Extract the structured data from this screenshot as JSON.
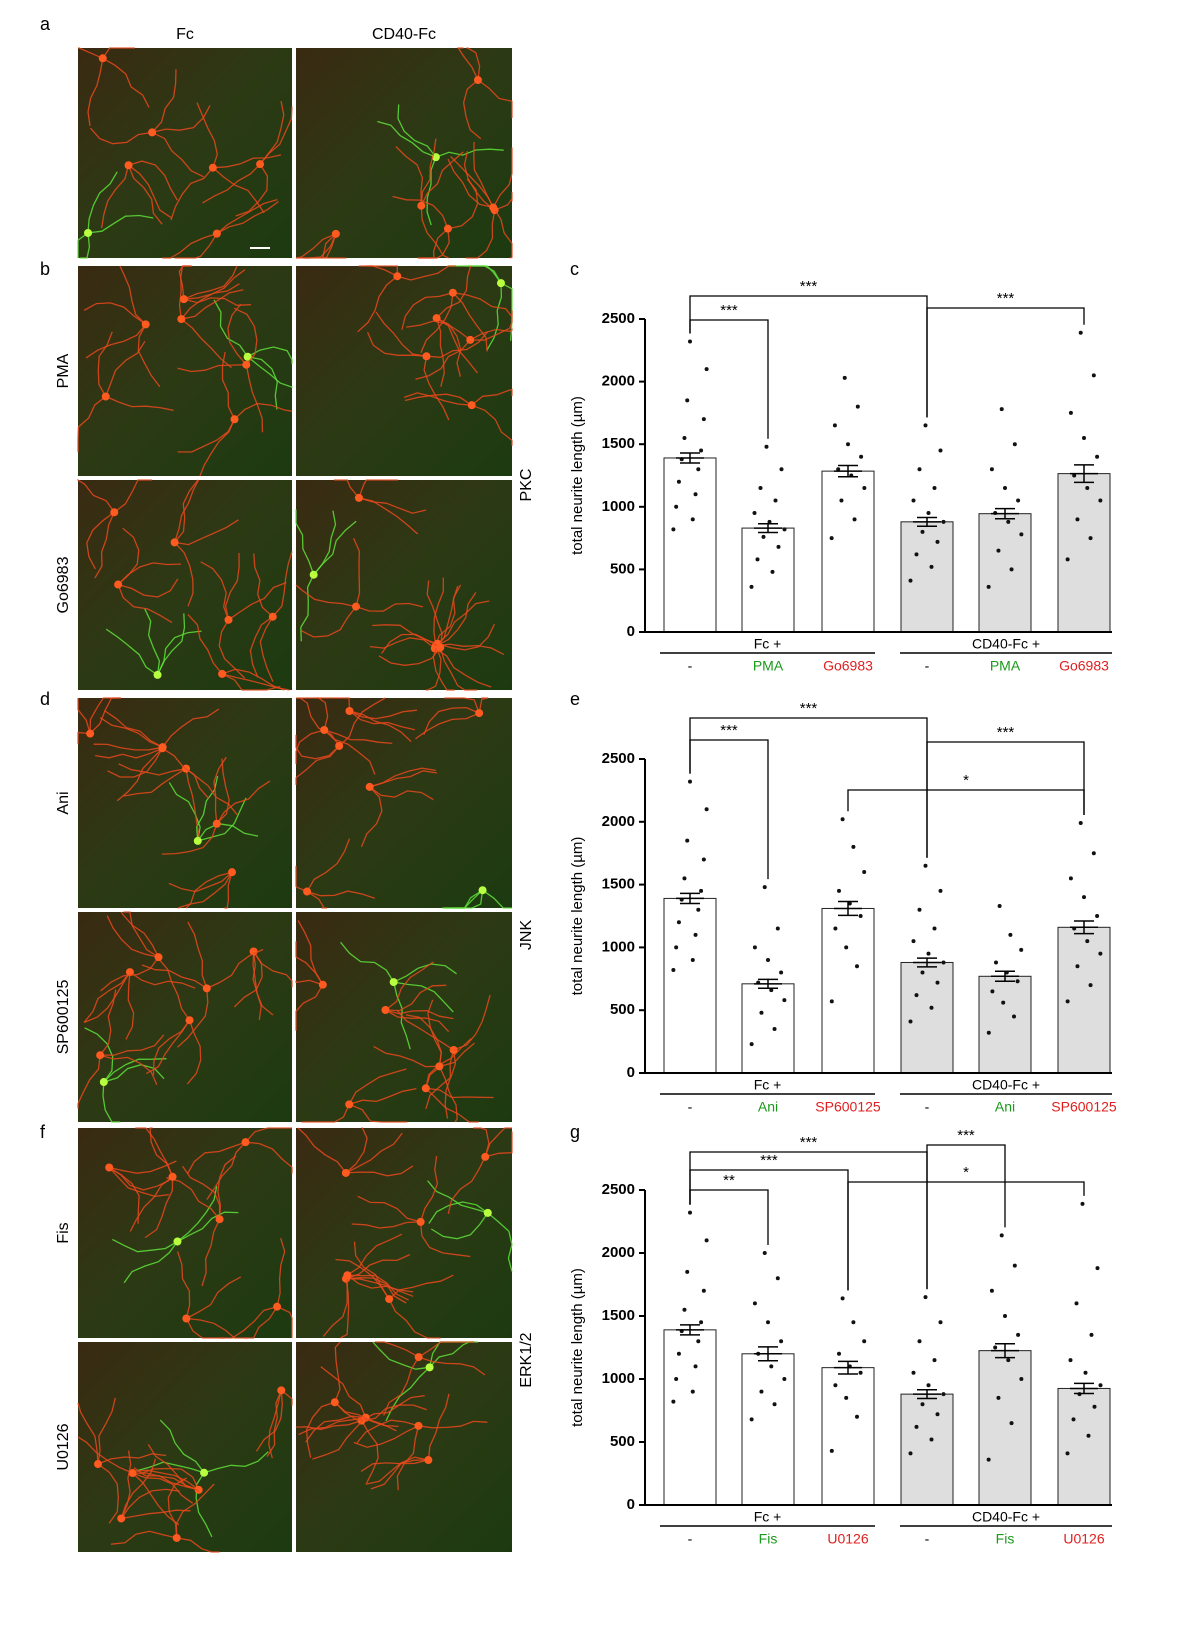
{
  "figure": {
    "panel_labels": [
      "a",
      "b",
      "d",
      "f"
    ],
    "column_headers": [
      "Fc",
      "CD40-Fc"
    ],
    "row_labels": [
      "PMA",
      "Go6983",
      "Ani",
      "SP600125",
      "Fis",
      "U0126"
    ]
  },
  "chart_data": [
    {
      "type": "bar",
      "panel_label": "c",
      "title": "PKC",
      "y_label": "total neurite length (µm)",
      "groups": [
        "Fc +",
        "CD40-Fc +"
      ],
      "categories": [
        "-",
        "PMA",
        "Go6983",
        "-",
        "PMA",
        "Go6983"
      ],
      "category_colors": [
        "#000000",
        "#1a9a1a",
        "#e02020",
        "#000000",
        "#1a9a1a",
        "#e02020"
      ],
      "bar_colors": [
        "#ffffff",
        "#ffffff",
        "#ffffff",
        "#dedede",
        "#dedede",
        "#dedede"
      ],
      "values": [
        1390,
        830,
        1285,
        880,
        945,
        1265
      ],
      "errors": [
        40,
        35,
        45,
        35,
        40,
        70
      ],
      "points": [
        [
          820,
          900,
          1000,
          1100,
          1200,
          1300,
          1380,
          1450,
          1550,
          1700,
          1850,
          2100,
          2320
        ],
        [
          360,
          480,
          580,
          680,
          760,
          820,
          880,
          950,
          1050,
          1150,
          1300,
          1480
        ],
        [
          750,
          900,
          1050,
          1150,
          1250,
          1300,
          1400,
          1500,
          1650,
          1800,
          2030
        ],
        [
          410,
          520,
          620,
          720,
          800,
          880,
          950,
          1050,
          1150,
          1300,
          1450,
          1650
        ],
        [
          360,
          500,
          650,
          780,
          880,
          950,
          1050,
          1150,
          1300,
          1500,
          1780
        ],
        [
          580,
          750,
          900,
          1050,
          1150,
          1250,
          1400,
          1550,
          1750,
          2050,
          2390
        ]
      ],
      "annotations": [
        "***",
        "***",
        "***"
      ],
      "ylim": [
        0,
        2500
      ],
      "yticks": [
        0,
        500,
        1000,
        1500,
        2000,
        2500
      ]
    },
    {
      "type": "bar",
      "panel_label": "e",
      "title": "JNK",
      "y_label": "total neurite length (µm)",
      "groups": [
        "Fc +",
        "CD40-Fc +"
      ],
      "categories": [
        "-",
        "Ani",
        "SP600125",
        "-",
        "Ani",
        "SP600125"
      ],
      "category_colors": [
        "#000000",
        "#1a9a1a",
        "#e02020",
        "#000000",
        "#1a9a1a",
        "#e02020"
      ],
      "bar_colors": [
        "#ffffff",
        "#ffffff",
        "#ffffff",
        "#dedede",
        "#dedede",
        "#dedede"
      ],
      "values": [
        1390,
        710,
        1310,
        880,
        770,
        1160
      ],
      "errors": [
        40,
        35,
        55,
        35,
        40,
        50
      ],
      "points": [
        [
          820,
          900,
          1000,
          1100,
          1200,
          1300,
          1380,
          1450,
          1550,
          1700,
          1850,
          2100,
          2320
        ],
        [
          230,
          350,
          480,
          580,
          660,
          720,
          800,
          900,
          1000,
          1150,
          1480
        ],
        [
          570,
          850,
          1000,
          1150,
          1250,
          1350,
          1450,
          1600,
          1800,
          2020
        ],
        [
          410,
          520,
          620,
          720,
          800,
          880,
          950,
          1050,
          1150,
          1300,
          1450,
          1650
        ],
        [
          320,
          450,
          560,
          650,
          730,
          800,
          880,
          980,
          1100,
          1330
        ],
        [
          570,
          700,
          850,
          950,
          1050,
          1150,
          1250,
          1400,
          1550,
          1750,
          1990
        ]
      ],
      "annotations": [
        "***",
        "***",
        "***",
        "*"
      ],
      "ylim": [
        0,
        2500
      ],
      "yticks": [
        0,
        500,
        1000,
        1500,
        2000,
        2500
      ]
    },
    {
      "type": "bar",
      "panel_label": "g",
      "title": "ERK1/2",
      "y_label": "total neurite length (µm)",
      "groups": [
        "Fc +",
        "CD40-Fc +"
      ],
      "categories": [
        "-",
        "Fis",
        "U0126",
        "-",
        "Fis",
        "U0126"
      ],
      "category_colors": [
        "#000000",
        "#1a9a1a",
        "#e02020",
        "#000000",
        "#1a9a1a",
        "#e02020"
      ],
      "bar_colors": [
        "#ffffff",
        "#ffffff",
        "#ffffff",
        "#dedede",
        "#dedede",
        "#dedede"
      ],
      "values": [
        1390,
        1200,
        1090,
        880,
        1225,
        925
      ],
      "errors": [
        40,
        55,
        50,
        35,
        55,
        40
      ],
      "points": [
        [
          820,
          900,
          1000,
          1100,
          1200,
          1300,
          1380,
          1450,
          1550,
          1700,
          1850,
          2100,
          2320
        ],
        [
          680,
          800,
          900,
          1000,
          1100,
          1200,
          1300,
          1450,
          1600,
          1800,
          2000
        ],
        [
          430,
          700,
          850,
          950,
          1050,
          1100,
          1200,
          1300,
          1450,
          1640
        ],
        [
          410,
          520,
          620,
          720,
          800,
          880,
          950,
          1050,
          1150,
          1300,
          1450,
          1650
        ],
        [
          360,
          650,
          850,
          1000,
          1150,
          1250,
          1350,
          1500,
          1700,
          1900,
          2140
        ],
        [
          410,
          550,
          680,
          780,
          880,
          950,
          1050,
          1150,
          1350,
          1600,
          1880,
          2390
        ]
      ],
      "annotations": [
        "**",
        "***",
        "***",
        "***",
        "*"
      ],
      "ylim": [
        0,
        2500
      ],
      "yticks": [
        0,
        500,
        1000,
        1500,
        2000,
        2500
      ]
    }
  ]
}
